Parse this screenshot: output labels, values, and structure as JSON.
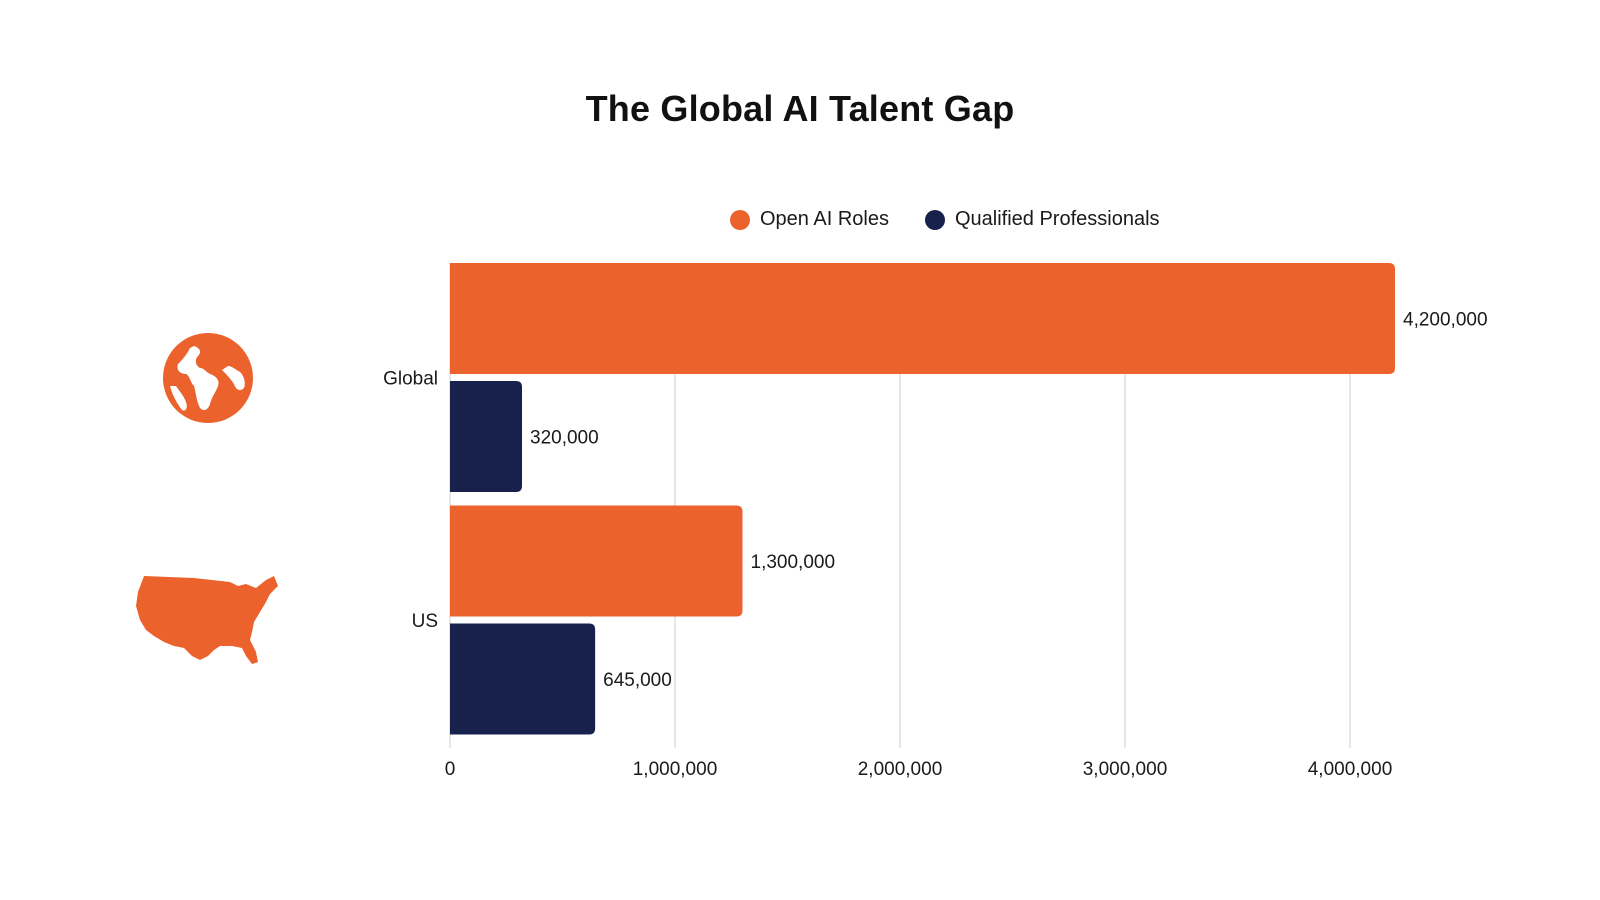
{
  "chart_data": {
    "type": "bar",
    "orientation": "horizontal",
    "title": "The Global AI Talent Gap",
    "categories": [
      "Global",
      "US"
    ],
    "series": [
      {
        "name": "Open AI Roles",
        "color": "#EC622D",
        "values": [
          4200000,
          1300000
        ],
        "labels": [
          "4,200,000",
          "1,300,000"
        ]
      },
      {
        "name": "Qualified Professionals",
        "color": "#17214C",
        "values": [
          320000,
          645000
        ],
        "labels": [
          "320,000",
          "645,000"
        ]
      }
    ],
    "xlim": [
      0,
      4000000
    ],
    "x_ticks": [
      0,
      1000000,
      2000000,
      3000000,
      4000000
    ],
    "x_tick_labels": [
      "0",
      "1,000,000",
      "2,000,000",
      "3,000,000",
      "4,000,000"
    ],
    "xlabel": "",
    "ylabel": "",
    "grid": "vertical",
    "legend_position": "top"
  },
  "icons": {
    "global": "globe-icon",
    "us": "us-map-icon"
  }
}
